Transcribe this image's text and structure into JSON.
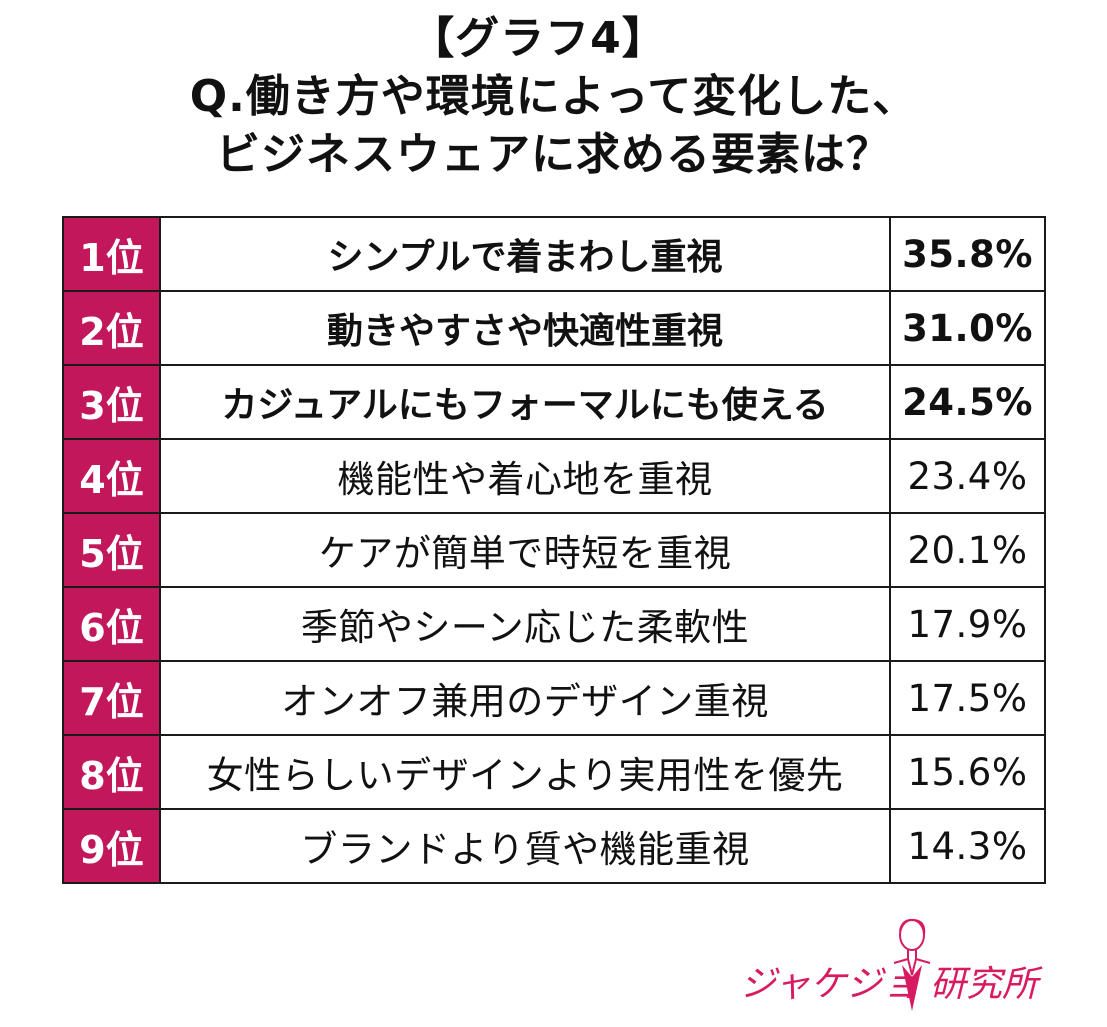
{
  "title": {
    "line1": "【グラフ4】",
    "line2": "Q.働き方や環境によって変化した、",
    "line3": "ビジネスウェアに求める要素は？"
  },
  "chart_data": {
    "type": "table",
    "title": "Q.働き方や環境によって変化した、ビジネスウェアに求める要素は？",
    "rows": [
      {
        "rank": "1位",
        "label": "シンプルで着まわし重視",
        "value_text": "35.8%",
        "value": 35.8
      },
      {
        "rank": "2位",
        "label": "動きやすさや快適性重視",
        "value_text": "31.0%",
        "value": 31.0
      },
      {
        "rank": "3位",
        "label": "カジュアルにもフォーマルにも使える",
        "value_text": "24.5%",
        "value": 24.5
      },
      {
        "rank": "4位",
        "label": "機能性や着心地を重視",
        "value_text": "23.4%",
        "value": 23.4
      },
      {
        "rank": "5位",
        "label": "ケアが簡単で時短を重視",
        "value_text": "20.1%",
        "value": 20.1
      },
      {
        "rank": "6位",
        "label": "季節やシーン応じた柔軟性",
        "value_text": "17.9%",
        "value": 17.9
      },
      {
        "rank": "7位",
        "label": "オンオフ兼用のデザイン重視",
        "value_text": "17.5%",
        "value": 17.5
      },
      {
        "rank": "8位",
        "label": "女性らしいデザインより実用性を優先",
        "value_text": "15.6%",
        "value": 15.6
      },
      {
        "rank": "9位",
        "label": "ブランドより質や機能重視",
        "value_text": "14.3%",
        "value": 14.3
      }
    ]
  },
  "logo": {
    "text_left": "ジャケジョ",
    "text_right": "研究所"
  },
  "colors": {
    "accent": "#c2185b",
    "logo": "#d81b60",
    "border": "#1a1a1a"
  }
}
